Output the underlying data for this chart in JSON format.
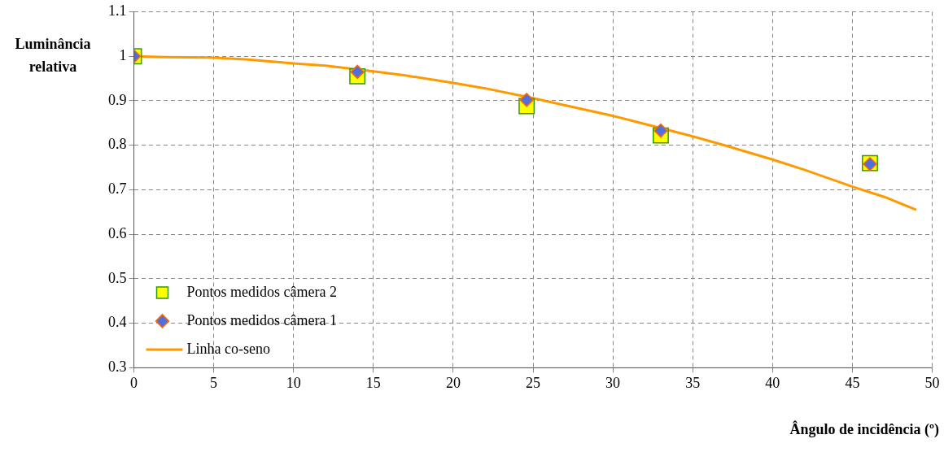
{
  "chart_data": {
    "type": "scatter",
    "xlabel": "Ângulo de incidência (º)",
    "ylabel": "Luminância relativa",
    "xlim": [
      0,
      50
    ],
    "xticks": [
      0,
      5,
      10,
      15,
      20,
      25,
      30,
      35,
      40,
      45,
      50
    ],
    "ylim": [
      0.3,
      1.1
    ],
    "yticks": [
      0.3,
      0.4,
      0.5,
      0.6,
      0.7,
      0.8,
      0.9,
      1,
      1.1
    ],
    "grid": true,
    "legend": "bottom left",
    "series": [
      {
        "name": "Pontos medidos câmera 2",
        "type": "scatter",
        "marker": "square",
        "color": "#ffff00",
        "x": [
          0,
          14,
          24.6,
          33,
          46.1
        ],
        "values": [
          1.0,
          0.955,
          0.888,
          0.822,
          0.76
        ]
      },
      {
        "name": "Pontos medidos câmera 1",
        "type": "scatter",
        "marker": "diamond",
        "color": "#4f6fe0",
        "x": [
          0,
          14,
          24.6,
          33,
          46.1
        ],
        "values": [
          1.0,
          0.965,
          0.902,
          0.833,
          0.758
        ]
      },
      {
        "name": "Linha co-seno",
        "type": "line",
        "marker": "none",
        "color": "#ff9900",
        "x": [
          0,
          2,
          5,
          7,
          10,
          12,
          15,
          17,
          20,
          22,
          25,
          27,
          30,
          32,
          35,
          37,
          40,
          42,
          45,
          47,
          49
        ],
        "values": [
          1.0,
          0.998,
          0.997,
          0.993,
          0.984,
          0.979,
          0.966,
          0.957,
          0.94,
          0.928,
          0.906,
          0.89,
          0.866,
          0.848,
          0.82,
          0.8,
          0.768,
          0.745,
          0.707,
          0.684,
          0.655
        ]
      }
    ]
  }
}
